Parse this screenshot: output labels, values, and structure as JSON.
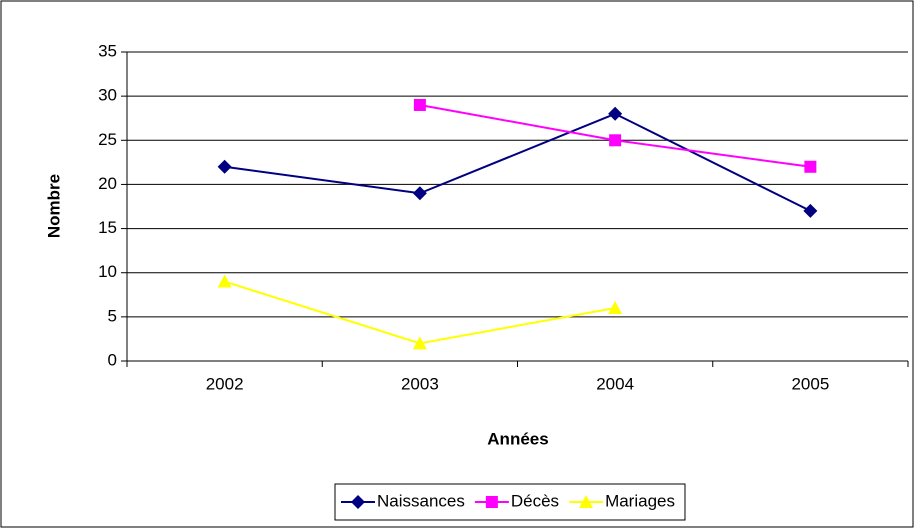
{
  "chart_data": {
    "type": "line",
    "categories": [
      "2002",
      "2003",
      "2004",
      "2005"
    ],
    "series": [
      {
        "name": "Naissances",
        "color": "#000080",
        "marker": "diamond",
        "values": [
          22,
          19,
          28,
          17
        ]
      },
      {
        "name": "Décès",
        "color": "#ff00ff",
        "marker": "square",
        "values": [
          null,
          29,
          25,
          22
        ]
      },
      {
        "name": "Mariages",
        "color": "#ffff00",
        "marker": "triangle",
        "values": [
          9,
          2,
          6,
          null
        ]
      }
    ],
    "x_label": "Années",
    "y_label": "Nombre",
    "ylim": [
      0,
      35
    ],
    "yticks": [
      0,
      5,
      10,
      15,
      20,
      25,
      30,
      35
    ],
    "grid": true,
    "legend": "bottom"
  }
}
